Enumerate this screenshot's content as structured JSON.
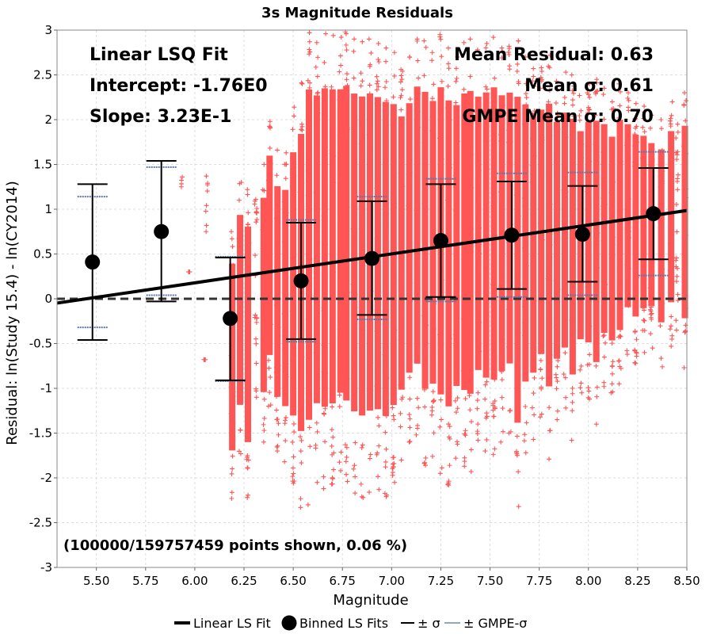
{
  "chart_data": {
    "type": "scatter",
    "title": "3s Magnitude Residuals",
    "xlabel": "Magnitude",
    "ylabel": "Residual: ln(Study 15.4) - ln(CY2014)",
    "xlim": [
      5.3,
      8.5
    ],
    "ylim": [
      -3,
      3
    ],
    "x_ticks": [
      "5.50",
      "5.75",
      "6.00",
      "6.25",
      "6.50",
      "6.75",
      "7.00",
      "7.25",
      "7.50",
      "7.75",
      "8.00",
      "8.25",
      "8.50"
    ],
    "y_ticks": [
      "-3",
      "-2.5",
      "-2",
      "-1.5",
      "-1",
      "-0.5",
      "0",
      "0.5",
      "1",
      "1.5",
      "2",
      "2.5",
      "3"
    ],
    "grid": true,
    "zero_line": 0,
    "fit": {
      "intercept": -1.76,
      "slope": 0.323
    },
    "annotations": {
      "fit_title": "Linear LSQ Fit",
      "intercept": "Intercept: -1.76E0",
      "slope": "Slope: 3.23E-1",
      "mean_residual": "Mean Residual: 0.63",
      "mean_sigma": "Mean σ: 0.61",
      "gmpe_mean_sigma": "GMPE Mean σ: 0.70",
      "points_shown": "(100000/159757459 points shown, 0.06 %)"
    },
    "bins": [
      {
        "x": 5.48,
        "mean": 0.41,
        "sigma_low": -0.46,
        "sigma_high": 1.28,
        "gmpe_low": -0.32,
        "gmpe_high": 1.14
      },
      {
        "x": 5.83,
        "mean": 0.75,
        "sigma_low": -0.03,
        "sigma_high": 1.54,
        "gmpe_low": 0.04,
        "gmpe_high": 1.47
      },
      {
        "x": 6.18,
        "mean": -0.22,
        "sigma_low": -0.91,
        "sigma_high": 0.46,
        "gmpe_low": -0.92,
        "gmpe_high": 0.47
      },
      {
        "x": 6.54,
        "mean": 0.2,
        "sigma_low": -0.45,
        "sigma_high": 0.85,
        "gmpe_low": -0.48,
        "gmpe_high": 0.88
      },
      {
        "x": 6.9,
        "mean": 0.45,
        "sigma_low": -0.18,
        "sigma_high": 1.09,
        "gmpe_low": -0.23,
        "gmpe_high": 1.14
      },
      {
        "x": 7.25,
        "mean": 0.65,
        "sigma_low": 0.02,
        "sigma_high": 1.28,
        "gmpe_low": -0.03,
        "gmpe_high": 1.34
      },
      {
        "x": 7.61,
        "mean": 0.71,
        "sigma_low": 0.11,
        "sigma_high": 1.31,
        "gmpe_low": 0.02,
        "gmpe_high": 1.4
      },
      {
        "x": 7.97,
        "mean": 0.72,
        "sigma_low": 0.19,
        "sigma_high": 1.26,
        "gmpe_low": 0.04,
        "gmpe_high": 1.41
      },
      {
        "x": 8.33,
        "mean": 0.95,
        "sigma_low": 0.44,
        "sigma_high": 1.46,
        "gmpe_low": 0.26,
        "gmpe_high": 1.64
      }
    ],
    "scatter_columns": [
      {
        "x": 5.93,
        "ymin": 1.25,
        "ymax": 1.36
      },
      {
        "x": 5.97,
        "ymin": 0.3,
        "ymax": 0.3
      },
      {
        "x": 6.05,
        "ymin": -0.68,
        "ymax": -0.68
      },
      {
        "x": 6.06,
        "ymin": 0.75,
        "ymax": 1.37
      },
      {
        "x": 6.19,
        "ymin": -2.23,
        "ymax": 0.75
      },
      {
        "x": 6.23,
        "ymin": -1.73,
        "ymax": 1.3
      },
      {
        "x": 6.27,
        "ymin": -2.22,
        "ymax": 1.22
      },
      {
        "x": 6.31,
        "ymin": -1.1,
        "ymax": 1.11
      },
      {
        "x": 6.35,
        "ymin": -1.6,
        "ymax": 1.5
      },
      {
        "x": 6.38,
        "ymin": -1.2,
        "ymax": 1.98
      },
      {
        "x": 6.42,
        "ymin": -1.7,
        "ymax": 1.66
      },
      {
        "x": 6.46,
        "ymin": -1.82,
        "ymax": 1.63
      },
      {
        "x": 6.5,
        "ymin": -2.06,
        "ymax": 2.14
      },
      {
        "x": 6.54,
        "ymin": -2.33,
        "ymax": 2.41
      },
      {
        "x": 6.58,
        "ymin": -2.3,
        "ymax": 2.97
      },
      {
        "x": 6.62,
        "ymin": -2.05,
        "ymax": 2.86
      },
      {
        "x": 6.66,
        "ymin": -2.12,
        "ymax": 2.96
      },
      {
        "x": 6.7,
        "ymin": -2.07,
        "ymax": 2.94
      },
      {
        "x": 6.74,
        "ymin": -1.92,
        "ymax": 2.92
      },
      {
        "x": 6.77,
        "ymin": -2.04,
        "ymax": 2.98
      },
      {
        "x": 6.81,
        "ymin": -2.17,
        "ymax": 2.9
      },
      {
        "x": 6.85,
        "ymin": -2.22,
        "ymax": 2.87
      },
      {
        "x": 6.89,
        "ymin": -2.16,
        "ymax": 2.9
      },
      {
        "x": 6.93,
        "ymin": -2.13,
        "ymax": 2.85
      },
      {
        "x": 6.97,
        "ymin": -2.21,
        "ymax": 2.8
      },
      {
        "x": 7.01,
        "ymin": -2.05,
        "ymax": 2.75
      },
      {
        "x": 7.05,
        "ymin": -1.8,
        "ymax": 2.56
      },
      {
        "x": 7.09,
        "ymin": -1.6,
        "ymax": 2.7
      },
      {
        "x": 7.13,
        "ymin": -1.52,
        "ymax": 2.9
      },
      {
        "x": 7.17,
        "ymin": -1.86,
        "ymax": 2.88
      },
      {
        "x": 7.21,
        "ymin": -1.76,
        "ymax": 2.75
      },
      {
        "x": 7.25,
        "ymin": -1.95,
        "ymax": 2.95
      },
      {
        "x": 7.29,
        "ymin": -2.08,
        "ymax": 2.8
      },
      {
        "x": 7.33,
        "ymin": -1.78,
        "ymax": 2.7
      },
      {
        "x": 7.37,
        "ymin": -1.87,
        "ymax": 2.86
      },
      {
        "x": 7.4,
        "ymin": -1.93,
        "ymax": 2.9
      },
      {
        "x": 7.44,
        "ymin": -1.58,
        "ymax": 2.78
      },
      {
        "x": 7.48,
        "ymin": -1.7,
        "ymax": 2.85
      },
      {
        "x": 7.52,
        "ymin": -1.74,
        "ymax": 2.92
      },
      {
        "x": 7.56,
        "ymin": -1.6,
        "ymax": 2.8
      },
      {
        "x": 7.6,
        "ymin": -1.5,
        "ymax": 2.82
      },
      {
        "x": 7.64,
        "ymin": -2.32,
        "ymax": 2.88
      },
      {
        "x": 7.68,
        "ymin": -1.72,
        "ymax": 2.7
      },
      {
        "x": 7.72,
        "ymin": -1.57,
        "ymax": 2.57
      },
      {
        "x": 7.76,
        "ymin": -1.32,
        "ymax": 2.58
      },
      {
        "x": 7.8,
        "ymin": -1.79,
        "ymax": 2.72
      },
      {
        "x": 7.84,
        "ymin": -1.35,
        "ymax": 2.43
      },
      {
        "x": 7.88,
        "ymin": -1.22,
        "ymax": 2.53
      },
      {
        "x": 7.92,
        "ymin": -1.58,
        "ymax": 2.5
      },
      {
        "x": 7.96,
        "ymin": -1.05,
        "ymax": 2.27
      },
      {
        "x": 8.0,
        "ymin": -1.12,
        "ymax": 2.4
      },
      {
        "x": 8.04,
        "ymin": -1.4,
        "ymax": 2.45
      },
      {
        "x": 8.08,
        "ymin": -0.98,
        "ymax": 2.35
      },
      {
        "x": 8.12,
        "ymin": -1.05,
        "ymax": 2.2
      },
      {
        "x": 8.16,
        "ymin": -0.95,
        "ymax": 2.4
      },
      {
        "x": 8.2,
        "ymin": -0.62,
        "ymax": 2.3
      },
      {
        "x": 8.24,
        "ymin": -0.72,
        "ymax": 2.18
      },
      {
        "x": 8.28,
        "ymin": -0.6,
        "ymax": 2.15
      },
      {
        "x": 8.32,
        "ymin": -0.55,
        "ymax": 2.05
      },
      {
        "x": 8.37,
        "ymin": -0.76,
        "ymax": 2.0
      },
      {
        "x": 8.42,
        "ymin": -0.53,
        "ymax": 2.2
      },
      {
        "x": 8.45,
        "ymin": -0.35,
        "ymax": 1.95
      },
      {
        "x": 8.49,
        "ymin": -0.77,
        "ymax": 2.3
      }
    ],
    "legend": {
      "position": "bottom",
      "items": [
        {
          "label": "Linear LS Fit",
          "color": "#000000",
          "kind": "line"
        },
        {
          "label": "Binned LS Fits",
          "color": "#000000",
          "kind": "dot"
        },
        {
          "label": "± σ",
          "color": "#000000",
          "kind": "thin-line"
        },
        {
          "label": "± GMPE-σ",
          "color": "#90A8C0",
          "kind": "thin-line"
        }
      ]
    },
    "colors": {
      "scatter": "#FF5555",
      "fit": "#000000",
      "gmpe": "#5A78A8",
      "zero_line": "#333333",
      "grid": "#DDDDDD"
    }
  }
}
